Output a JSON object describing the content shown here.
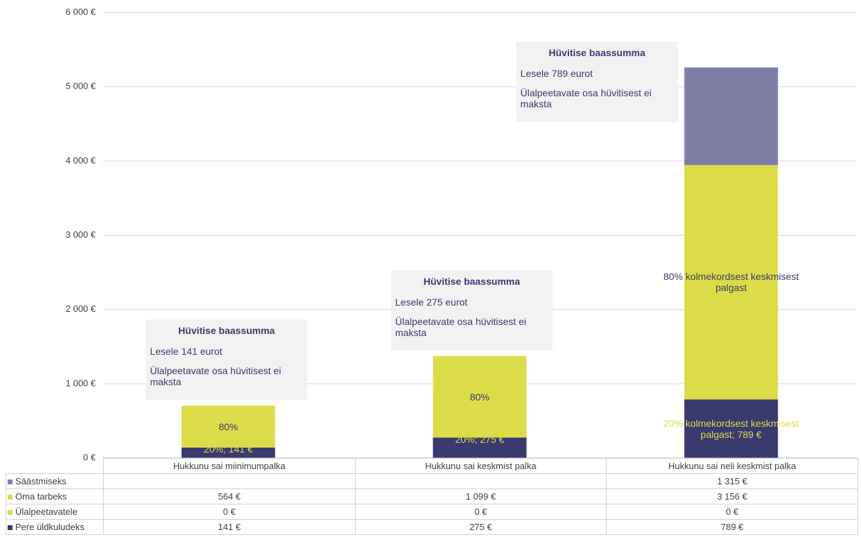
{
  "chart_data": {
    "type": "stacked_bar",
    "categories": [
      "Hukkunu sai miinimumpalka",
      "Hukkunu sai keskmist palka",
      "Hukkunu sai neli keskmist palka"
    ],
    "series": [
      {
        "name": "Pere üldkuludeks",
        "color": "#3b3a6e",
        "values": [
          141,
          275,
          789
        ],
        "value_labels": [
          "141 €",
          "275 €",
          "789 €"
        ],
        "segment_labels": [
          "20%;  141 €",
          "20%;  275 €",
          "20% kolmekordsest keskmisest palgast;  789 €"
        ],
        "label_color": "#dcdc48"
      },
      {
        "name": "Ülalpeetavatele",
        "color": "#dcdc48",
        "values": [
          0,
          0,
          0
        ],
        "value_labels": [
          "0 €",
          "0 €",
          "0 €"
        ]
      },
      {
        "name": "Oma tarbeks",
        "color": "#dcdc48",
        "values": [
          564,
          1099,
          3156
        ],
        "value_labels": [
          "564 €",
          "1 099 €",
          "3 156 €"
        ],
        "segment_labels": [
          "80%",
          "80%",
          "80% kolmekordsest keskmisest palgast"
        ],
        "label_color": "#3b3a6e"
      },
      {
        "name": "Säästmiseks",
        "color": "#7f7fa6",
        "values": [
          null,
          null,
          1315
        ],
        "value_labels": [
          null,
          null,
          "1 315 €"
        ]
      }
    ],
    "ylim": [
      0,
      6000
    ],
    "yticks": [
      {
        "value": 0,
        "label": "0 €"
      },
      {
        "value": 1000,
        "label": "1 000 €"
      },
      {
        "value": 2000,
        "label": "2 000 €"
      },
      {
        "value": 3000,
        "label": "3 000 €"
      },
      {
        "value": 4000,
        "label": "4 000 €"
      },
      {
        "value": 5000,
        "label": "5 000 €"
      },
      {
        "value": 6000,
        "label": "6 000 €"
      }
    ],
    "grid": true,
    "annotations": [
      {
        "title": "Hüvitise baassumma",
        "lines": [
          "Lesele 141 eurot",
          "Ülalpeetavate osa hüvitisest ei maksta"
        ]
      },
      {
        "title": "Hüvitise baassumma",
        "lines": [
          "Lesele 275 eurot",
          "Ülalpeetavate osa hüvitisest ei maksta"
        ]
      },
      {
        "title": "Hüvitise baassumma",
        "lines": [
          "Lesele 789 eurot",
          "Ülalpeetavate osa hüvitisest ei maksta"
        ]
      }
    ]
  }
}
